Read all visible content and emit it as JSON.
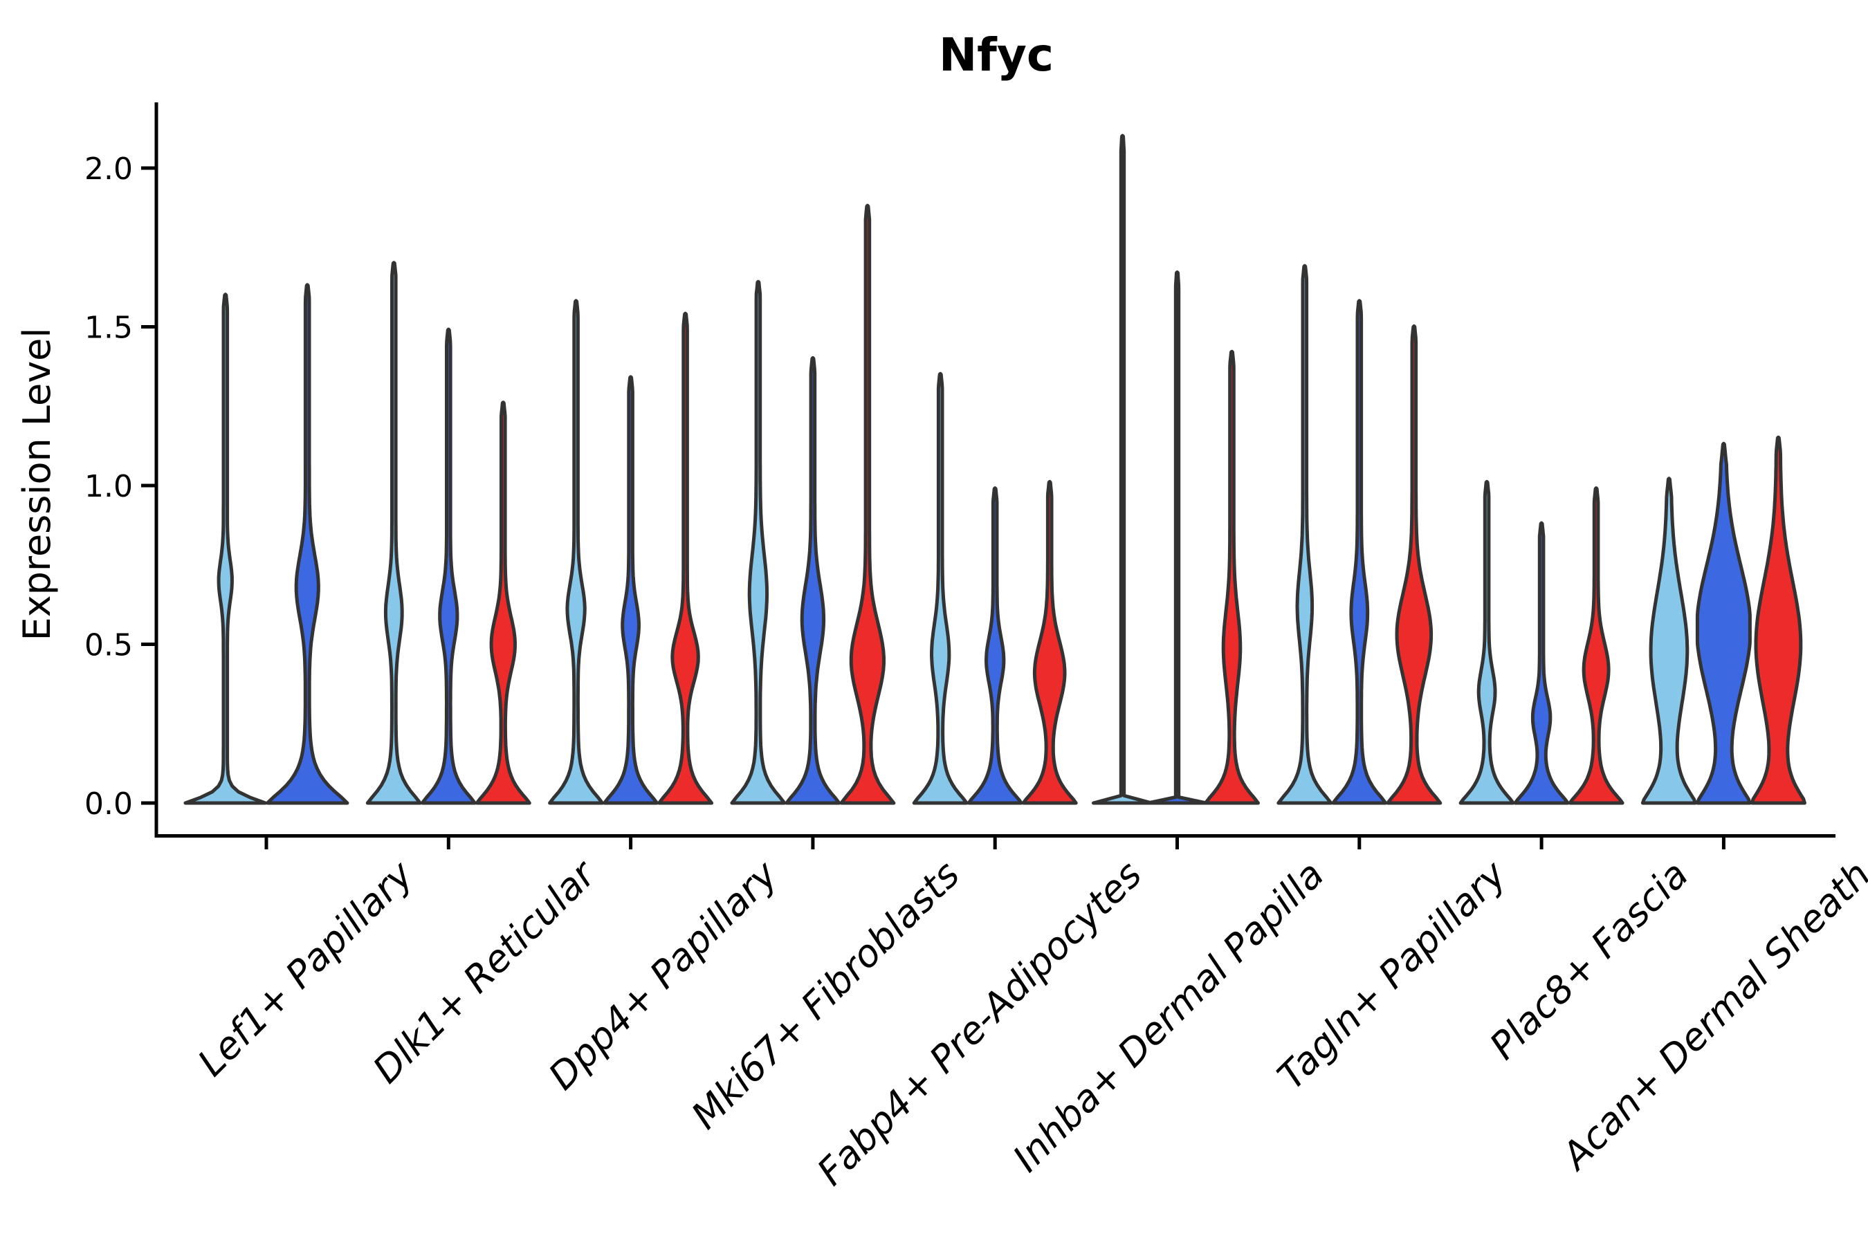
{
  "title": "Nfyc",
  "y_axis": {
    "label": "Expression Level",
    "tick_labels": [
      "0.0",
      "0.5",
      "1.0",
      "1.5",
      "2.0"
    ]
  },
  "categories": [
    "Lef1+ Papillary",
    "Dlk1+ Reticular",
    "Dpp4+ Papillary",
    "Mki67+ Fibroblasts",
    "Fabp4+ Pre-Adipocytes",
    "Inhba+ Dermal Papilla",
    "Tagln+ Papillary",
    "Plac8+ Fascia",
    "Acan+ Dermal Sheath"
  ],
  "colors": {
    "split_1_fill": "#87C7EA",
    "split_2_fill": "#3C68E1",
    "split_3_fill": "#EE2B2B",
    "outline": "#333333",
    "axis": "#000000"
  },
  "chart_data": {
    "type": "violin",
    "title": "Nfyc",
    "xlabel": "",
    "ylabel": "Expression Level",
    "ylim": [
      0,
      2.2
    ],
    "yticks": [
      0,
      0.5,
      1.0,
      1.5,
      2.0
    ],
    "grid": false,
    "legend": "none",
    "categories": [
      "Lef1+ Papillary",
      "Dlk1+ Reticular",
      "Dpp4+ Papillary",
      "Mki67+ Fibroblasts",
      "Fabp4+ Pre-Adipocytes",
      "Inhba+ Dermal Papilla",
      "Tagln+ Papillary",
      "Plac8+ Fascia",
      "Acan+ Dermal Sheath"
    ],
    "series_colors": [
      "#87C7EA",
      "#3C68E1",
      "#EE2B2B"
    ],
    "note": "Each group shows up to 3 KDE violins (light blue, royal blue, red). max = top of violin in expression units; bc/bs = bulge center/sigma; bw = bulge half-width fraction; base = zero-inflation flare sigma; flat = degenerate zero-width violin.",
    "groups": [
      {
        "category": "Lef1+ Papillary",
        "violins": [
          {
            "split": 1,
            "max": 1.6,
            "base": 0.03,
            "bc": 0.7,
            "bs": 0.09,
            "bw": 0.12,
            "flat": false
          },
          {
            "split": 2,
            "max": 1.63,
            "base": 0.075,
            "bc": 0.68,
            "bs": 0.14,
            "bw": 0.23,
            "flat": false
          }
        ]
      },
      {
        "category": "Dlk1+ Reticular",
        "violins": [
          {
            "split": 1,
            "max": 1.7,
            "base": 0.065,
            "bc": 0.6,
            "bs": 0.12,
            "bw": 0.24,
            "flat": false
          },
          {
            "split": 2,
            "max": 1.49,
            "base": 0.065,
            "bc": 0.59,
            "bs": 0.11,
            "bw": 0.26,
            "flat": false
          },
          {
            "split": 3,
            "max": 1.26,
            "base": 0.065,
            "bc": 0.5,
            "bs": 0.12,
            "bw": 0.38,
            "flat": false
          }
        ]
      },
      {
        "category": "Dpp4+ Papillary",
        "violins": [
          {
            "split": 1,
            "max": 1.58,
            "base": 0.065,
            "bc": 0.61,
            "bs": 0.11,
            "bw": 0.26,
            "flat": false
          },
          {
            "split": 2,
            "max": 1.34,
            "base": 0.065,
            "bc": 0.56,
            "bs": 0.1,
            "bw": 0.24,
            "flat": false
          },
          {
            "split": 3,
            "max": 1.54,
            "base": 0.065,
            "bc": 0.46,
            "bs": 0.11,
            "bw": 0.42,
            "flat": false
          }
        ]
      },
      {
        "category": "Mki67+ Fibroblasts",
        "violins": [
          {
            "split": 1,
            "max": 1.64,
            "base": 0.065,
            "bc": 0.66,
            "bs": 0.17,
            "bw": 0.26,
            "flat": false
          },
          {
            "split": 2,
            "max": 1.4,
            "base": 0.065,
            "bc": 0.58,
            "bs": 0.15,
            "bw": 0.34,
            "flat": false
          },
          {
            "split": 3,
            "max": 1.88,
            "base": 0.065,
            "bc": 0.45,
            "bs": 0.16,
            "bw": 0.55,
            "flat": false
          }
        ]
      },
      {
        "category": "Fabp4+ Pre-Adipocytes",
        "violins": [
          {
            "split": 1,
            "max": 1.35,
            "base": 0.065,
            "bc": 0.47,
            "bs": 0.13,
            "bw": 0.26,
            "flat": false
          },
          {
            "split": 2,
            "max": 0.99,
            "base": 0.065,
            "bc": 0.45,
            "bs": 0.1,
            "bw": 0.26,
            "flat": false
          },
          {
            "split": 3,
            "max": 1.01,
            "base": 0.065,
            "bc": 0.41,
            "bs": 0.14,
            "bw": 0.5,
            "flat": false
          }
        ]
      },
      {
        "category": "Inhba+ Dermal Papilla",
        "violins": [
          {
            "split": 1,
            "max": 2.1,
            "base": 0.004,
            "bc": 0.0,
            "bs": 1.0,
            "bw": 0.0,
            "flat": true
          },
          {
            "split": 2,
            "max": 1.67,
            "base": 0.004,
            "bc": 0.0,
            "bs": 1.0,
            "bw": 0.0,
            "flat": true
          },
          {
            "split": 3,
            "max": 1.42,
            "base": 0.065,
            "bc": 0.49,
            "bs": 0.16,
            "bw": 0.25,
            "flat": false
          }
        ]
      },
      {
        "category": "Tagln+ Papillary",
        "violins": [
          {
            "split": 1,
            "max": 1.69,
            "base": 0.065,
            "bc": 0.62,
            "bs": 0.15,
            "bw": 0.21,
            "flat": false
          },
          {
            "split": 2,
            "max": 1.58,
            "base": 0.065,
            "bc": 0.6,
            "bs": 0.13,
            "bw": 0.24,
            "flat": false
          },
          {
            "split": 3,
            "max": 1.5,
            "base": 0.065,
            "bc": 0.53,
            "bs": 0.18,
            "bw": 0.58,
            "flat": false
          }
        ]
      },
      {
        "category": "Plac8+ Fascia",
        "violins": [
          {
            "split": 1,
            "max": 1.01,
            "base": 0.065,
            "bc": 0.35,
            "bs": 0.095,
            "bw": 0.24,
            "flat": false
          },
          {
            "split": 2,
            "max": 0.88,
            "base": 0.065,
            "bc": 0.27,
            "bs": 0.085,
            "bw": 0.26,
            "flat": false
          },
          {
            "split": 3,
            "max": 0.99,
            "base": 0.065,
            "bc": 0.42,
            "bs": 0.12,
            "bw": 0.4,
            "flat": false
          }
        ]
      },
      {
        "category": "Acan+ Dermal Sheath",
        "violins": [
          {
            "split": 1,
            "max": 1.02,
            "base": 0.085,
            "bc": 0.48,
            "bs": 0.26,
            "bw": 0.62,
            "flat": false
          },
          {
            "split": 2,
            "max": 1.13,
            "base": 0.085,
            "bc": 0.55,
            "bs": 0.28,
            "bw": 0.95,
            "flat": false
          },
          {
            "split": 3,
            "max": 1.15,
            "base": 0.085,
            "bc": 0.5,
            "bs": 0.28,
            "bw": 0.78,
            "flat": false
          }
        ]
      }
    ]
  }
}
